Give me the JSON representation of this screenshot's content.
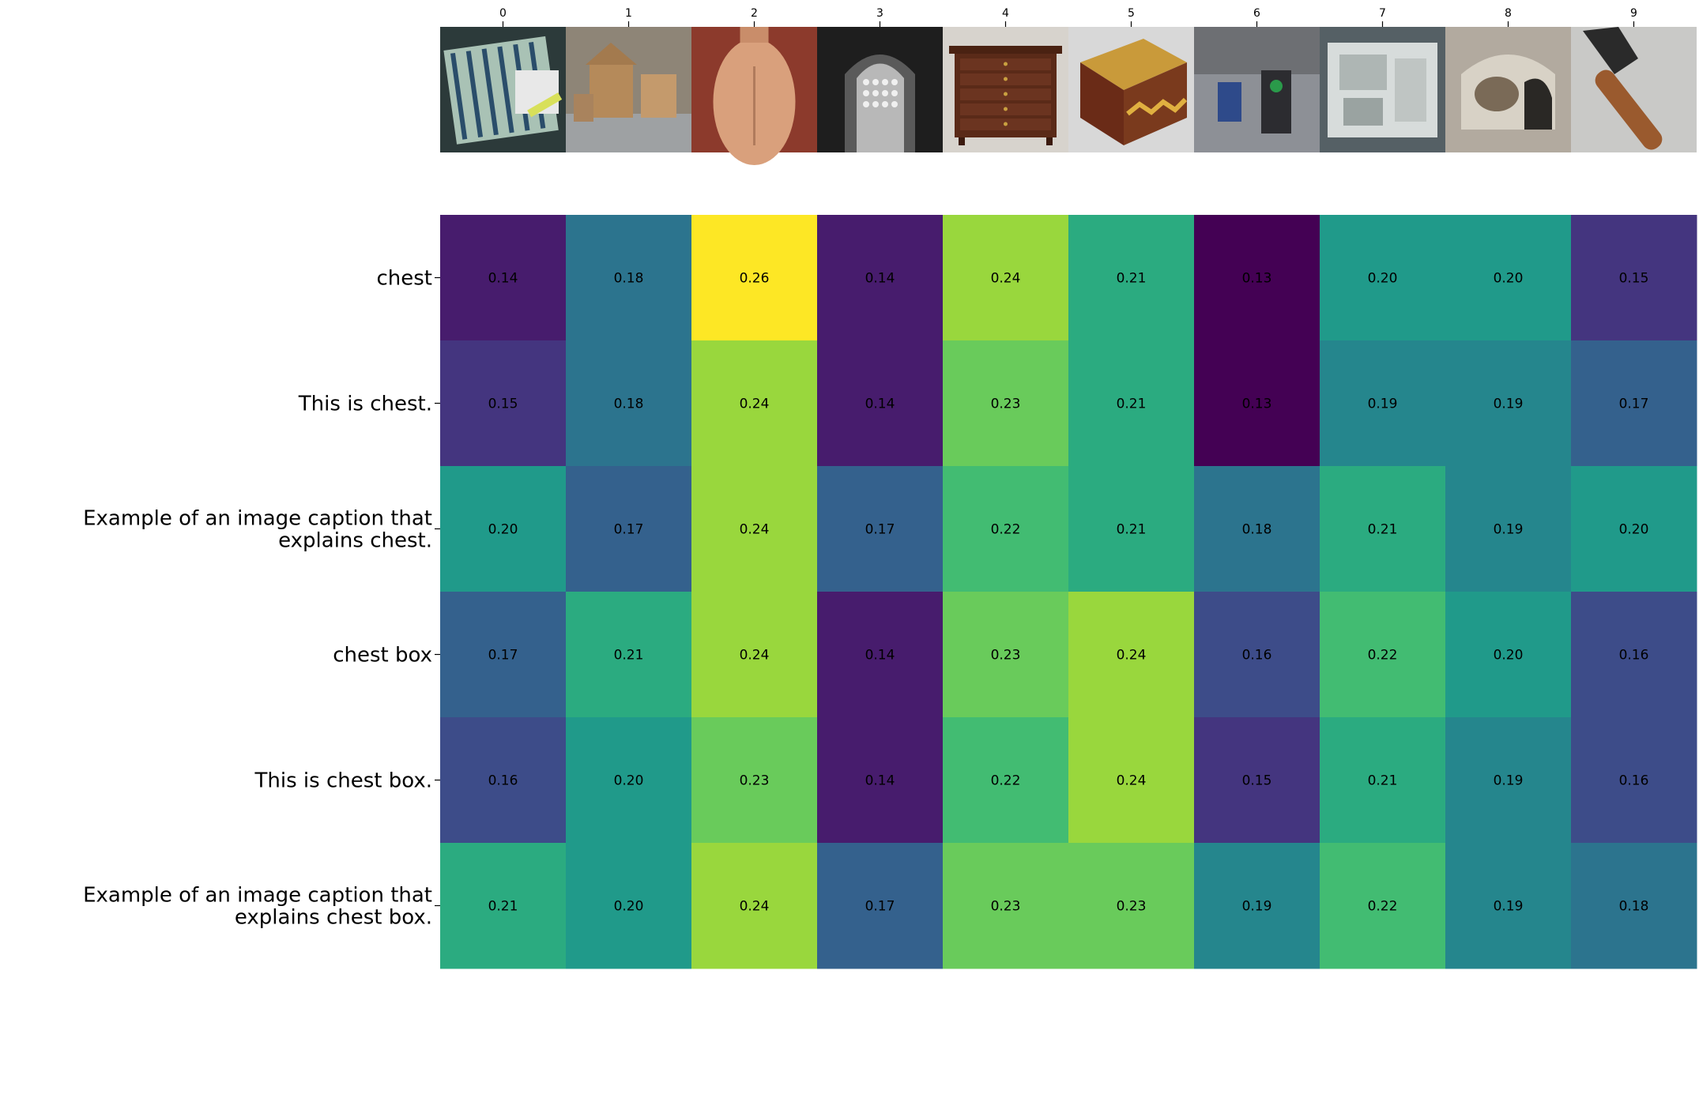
{
  "chart_data": {
    "type": "heatmap",
    "title": "",
    "xlabel": "",
    "ylabel": "",
    "x_tick_labels": [
      "0",
      "1",
      "2",
      "3",
      "4",
      "5",
      "6",
      "7",
      "8",
      "9"
    ],
    "y_tick_labels": [
      "chest",
      "This is chest.",
      "Example of an image caption that explains chest.",
      "chest box",
      "This is chest box.",
      "Example of an image caption that explains chest box."
    ],
    "colormap": "viridis",
    "value_range": [
      0.13,
      0.26
    ],
    "values": [
      [
        0.14,
        0.18,
        0.26,
        0.14,
        0.24,
        0.21,
        0.13,
        0.2,
        0.2,
        0.15
      ],
      [
        0.15,
        0.18,
        0.24,
        0.14,
        0.23,
        0.21,
        0.13,
        0.19,
        0.19,
        0.17
      ],
      [
        0.2,
        0.17,
        0.24,
        0.17,
        0.22,
        0.21,
        0.18,
        0.21,
        0.19,
        0.2
      ],
      [
        0.17,
        0.21,
        0.24,
        0.14,
        0.23,
        0.24,
        0.16,
        0.22,
        0.2,
        0.16
      ],
      [
        0.16,
        0.2,
        0.23,
        0.14,
        0.22,
        0.24,
        0.15,
        0.21,
        0.19,
        0.16
      ],
      [
        0.21,
        0.2,
        0.24,
        0.17,
        0.23,
        0.23,
        0.19,
        0.22,
        0.19,
        0.18
      ]
    ],
    "column_images": [
      {
        "icon": "battery-pack-image",
        "bg": "#2c3a3a",
        "fg": "#a9c2b5"
      },
      {
        "icon": "wicker-boxes-image",
        "bg": "#8e8577",
        "fg": "#b58a5a"
      },
      {
        "icon": "bare-torso-image",
        "bg": "#8c3a2c",
        "fg": "#d9a07c"
      },
      {
        "icon": "arched-doorway-image",
        "bg": "#1e1e1e",
        "fg": "#b8b8b8"
      },
      {
        "icon": "wooden-dresser-image",
        "bg": "#d7d3cd",
        "fg": "#5a2a18"
      },
      {
        "icon": "wooden-box-image",
        "bg": "#d8d8d8",
        "fg": "#6a2b17"
      },
      {
        "icon": "street-bins-image",
        "bg": "#8d9096",
        "fg": "#2c2c30"
      },
      {
        "icon": "computer-case-image",
        "bg": "#556065",
        "fg": "#d7dcdb"
      },
      {
        "icon": "stone-basin-image",
        "bg": "#b2aa9f",
        "fg": "#7a6a57"
      },
      {
        "icon": "axe-image",
        "bg": "#c9c9c7",
        "fg": "#9a5a2e"
      }
    ]
  }
}
